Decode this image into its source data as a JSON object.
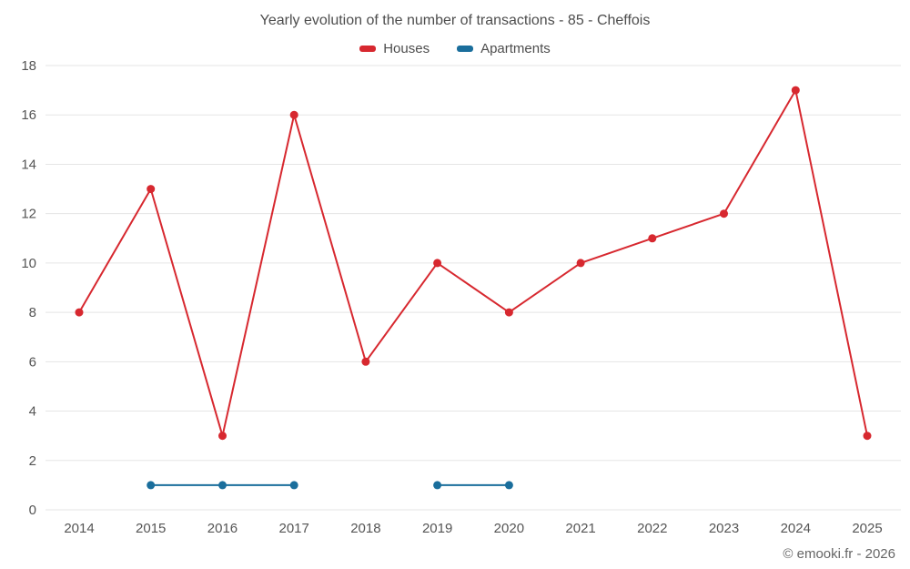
{
  "title": "Yearly evolution of the number of transactions - 85 - Cheffois",
  "footer": "© emooki.fr - 2026",
  "legend": {
    "items": [
      {
        "label": "Houses",
        "color": "#d7282f"
      },
      {
        "label": "Apartments",
        "color": "#1a6e9c"
      }
    ]
  },
  "colors": {
    "grid": "#e5e5e5",
    "tick_text": "#555555",
    "title_text": "#4d4d4d",
    "footer_text": "#666666",
    "background": "#ffffff"
  },
  "chart_data": {
    "type": "line",
    "title": "Yearly evolution of the number of transactions - 85 - Cheffois",
    "x": [
      2014,
      2015,
      2016,
      2017,
      2018,
      2019,
      2020,
      2021,
      2022,
      2023,
      2024,
      2025
    ],
    "series": [
      {
        "name": "Houses",
        "color": "#d7282f",
        "values": [
          8,
          13,
          3,
          16,
          6,
          10,
          8,
          10,
          11,
          12,
          17,
          3
        ]
      },
      {
        "name": "Apartments",
        "color": "#1a6e9c",
        "values": [
          null,
          1,
          1,
          1,
          null,
          1,
          1,
          null,
          null,
          null,
          null,
          null
        ]
      }
    ],
    "ylim": [
      0,
      18
    ],
    "ytick_step": 2,
    "grid": "horizontal",
    "legend_position": "top",
    "marker": "circle"
  }
}
